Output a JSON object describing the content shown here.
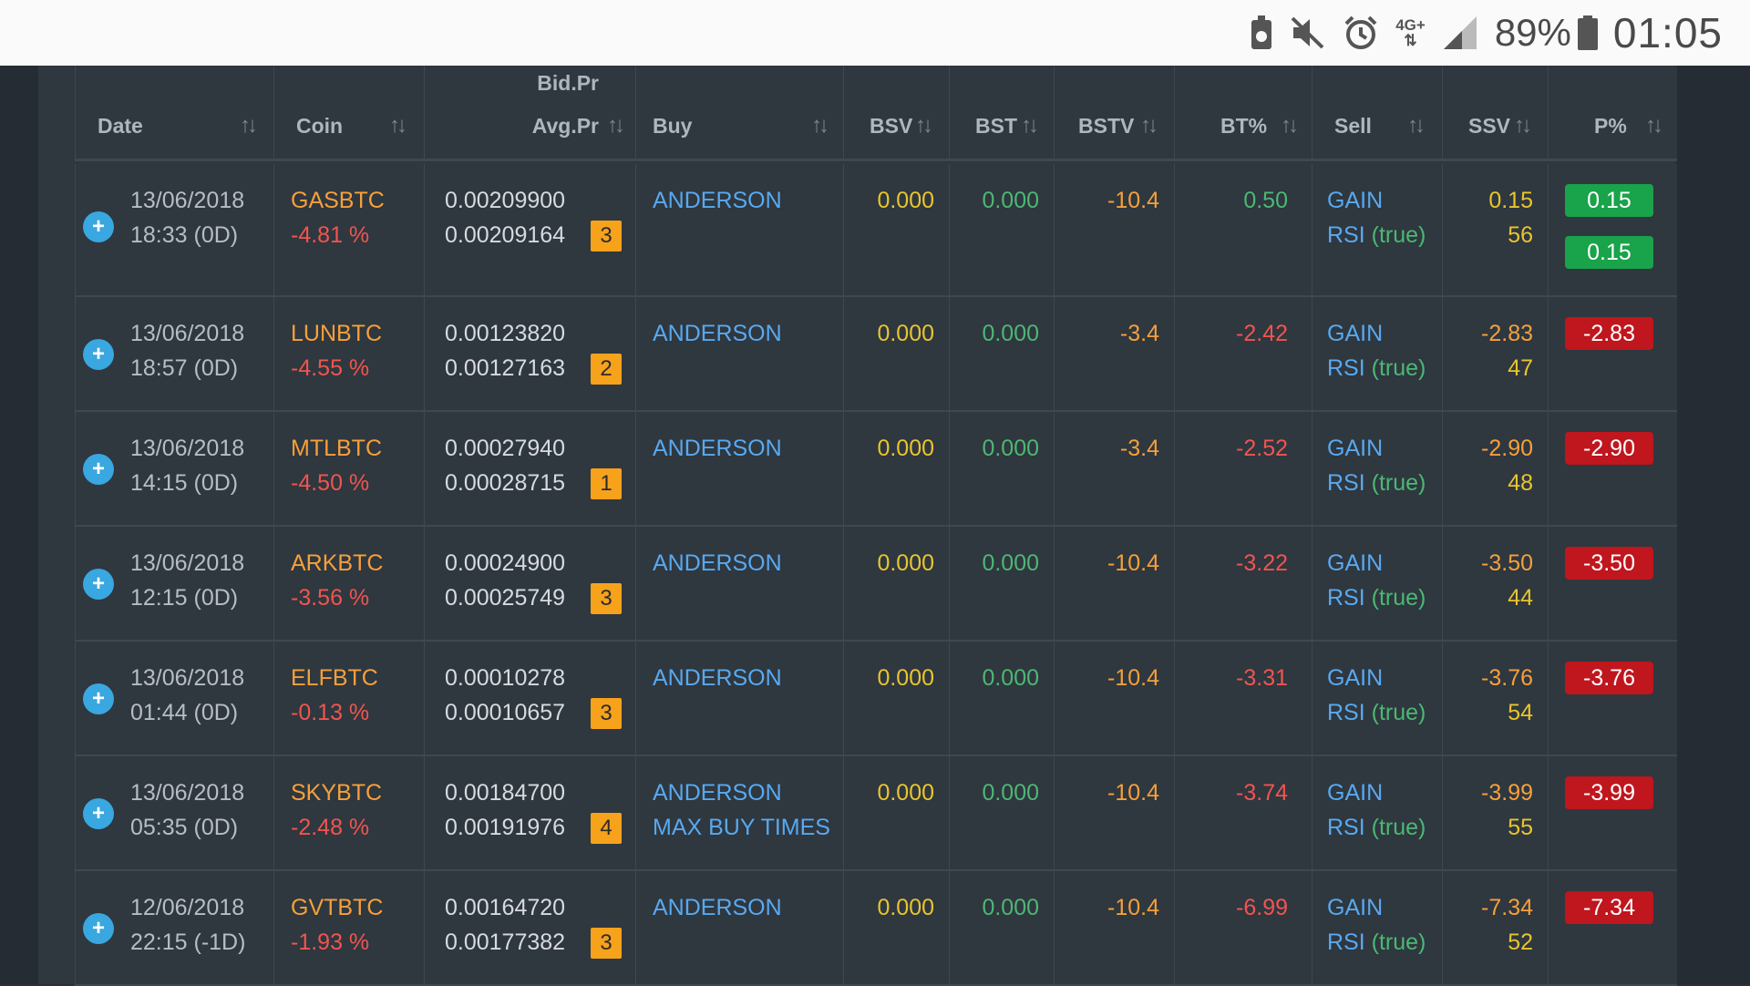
{
  "statusbar": {
    "icons": [
      "android-icon",
      "mute-icon",
      "alarm-icon",
      "4g-data-icon",
      "signal-icon"
    ],
    "network": "4G+",
    "battery": "89%",
    "battery_level": 0.89,
    "time": "01:05"
  },
  "colors": {
    "orange": "#f6a03a",
    "red": "#f0554f",
    "green": "#4cb873",
    "yellow": "#e8c52e",
    "blue": "#58a9f0",
    "badge": "#f7a21b",
    "pill_positive": "#19a34a",
    "pill_negative": "#c0161e"
  },
  "table": {
    "headers": {
      "date": "Date",
      "coin": "Coin",
      "price_top": "Bid.Pr",
      "price_bottom": "Avg.Pr",
      "buy": "Buy",
      "bsv": "BSV",
      "bst": "BST",
      "bstv": "BSTV",
      "bt": "BT%",
      "sell": "Sell",
      "ssv": "SSV",
      "p": "P%"
    },
    "sort_icon": "↑↓",
    "rows": [
      {
        "date": "13/06/2018",
        "time": "18:33 (0D)",
        "coin": "GASBTC",
        "change": "-4.81 %",
        "bid": "0.00209900",
        "avg": "0.00209164",
        "count": "3",
        "buy1": "ANDERSON",
        "buy2": "",
        "bsv": "0.000",
        "bst": "0.000",
        "bstv": "-10.4",
        "bt": "0.50",
        "bt_color": "green",
        "sell1": "GAIN",
        "sell2": "RSI",
        "sell2_flag": "(true)",
        "ssv": "0.15",
        "ssv_color": "yellow",
        "ssv2": "56",
        "p": "0.15",
        "p_sign": "pos",
        "p2": "0.15"
      },
      {
        "date": "13/06/2018",
        "time": "18:57 (0D)",
        "coin": "LUNBTC",
        "change": "-4.55 %",
        "bid": "0.00123820",
        "avg": "0.00127163",
        "count": "2",
        "buy1": "ANDERSON",
        "buy2": "",
        "bsv": "0.000",
        "bst": "0.000",
        "bstv": "-3.4",
        "bt": "-2.42",
        "bt_color": "red",
        "sell1": "GAIN",
        "sell2": "RSI",
        "sell2_flag": "(true)",
        "ssv": "-2.83",
        "ssv_color": "orange",
        "ssv2": "47",
        "p": "-2.83",
        "p_sign": "neg",
        "p2": ""
      },
      {
        "date": "13/06/2018",
        "time": "14:15 (0D)",
        "coin": "MTLBTC",
        "change": "-4.50 %",
        "bid": "0.00027940",
        "avg": "0.00028715",
        "count": "1",
        "buy1": "ANDERSON",
        "buy2": "",
        "bsv": "0.000",
        "bst": "0.000",
        "bstv": "-3.4",
        "bt": "-2.52",
        "bt_color": "red",
        "sell1": "GAIN",
        "sell2": "RSI",
        "sell2_flag": "(true)",
        "ssv": "-2.90",
        "ssv_color": "orange",
        "ssv2": "48",
        "p": "-2.90",
        "p_sign": "neg",
        "p2": ""
      },
      {
        "date": "13/06/2018",
        "time": "12:15 (0D)",
        "coin": "ARKBTC",
        "change": "-3.56 %",
        "bid": "0.00024900",
        "avg": "0.00025749",
        "count": "3",
        "buy1": "ANDERSON",
        "buy2": "",
        "bsv": "0.000",
        "bst": "0.000",
        "bstv": "-10.4",
        "bt": "-3.22",
        "bt_color": "red",
        "sell1": "GAIN",
        "sell2": "RSI",
        "sell2_flag": "(true)",
        "ssv": "-3.50",
        "ssv_color": "orange",
        "ssv2": "44",
        "p": "-3.50",
        "p_sign": "neg",
        "p2": ""
      },
      {
        "date": "13/06/2018",
        "time": "01:44 (0D)",
        "coin": "ELFBTC",
        "change": "-0.13 %",
        "bid": "0.00010278",
        "avg": "0.00010657",
        "count": "3",
        "buy1": "ANDERSON",
        "buy2": "",
        "bsv": "0.000",
        "bst": "0.000",
        "bstv": "-10.4",
        "bt": "-3.31",
        "bt_color": "red",
        "sell1": "GAIN",
        "sell2": "RSI",
        "sell2_flag": "(true)",
        "ssv": "-3.76",
        "ssv_color": "orange",
        "ssv2": "54",
        "p": "-3.76",
        "p_sign": "neg",
        "p2": ""
      },
      {
        "date": "13/06/2018",
        "time": "05:35 (0D)",
        "coin": "SKYBTC",
        "change": "-2.48 %",
        "bid": "0.00184700",
        "avg": "0.00191976",
        "count": "4",
        "buy1": "ANDERSON",
        "buy2": "MAX BUY TIMES",
        "bsv": "0.000",
        "bst": "0.000",
        "bstv": "-10.4",
        "bt": "-3.74",
        "bt_color": "red",
        "sell1": "GAIN",
        "sell2": "RSI",
        "sell2_flag": "(true)",
        "ssv": "-3.99",
        "ssv_color": "orange",
        "ssv2": "55",
        "p": "-3.99",
        "p_sign": "neg",
        "p2": ""
      },
      {
        "date": "12/06/2018",
        "time": "22:15 (-1D)",
        "coin": "GVTBTC",
        "change": "-1.93 %",
        "bid": "0.00164720",
        "avg": "0.00177382",
        "count": "3",
        "buy1": "ANDERSON",
        "buy2": "",
        "bsv": "0.000",
        "bst": "0.000",
        "bstv": "-10.4",
        "bt": "-6.99",
        "bt_color": "red",
        "sell1": "GAIN",
        "sell2": "RSI",
        "sell2_flag": "(true)",
        "ssv": "-7.34",
        "ssv_color": "orange",
        "ssv2": "52",
        "p": "-7.34",
        "p_sign": "neg",
        "p2": ""
      }
    ]
  }
}
